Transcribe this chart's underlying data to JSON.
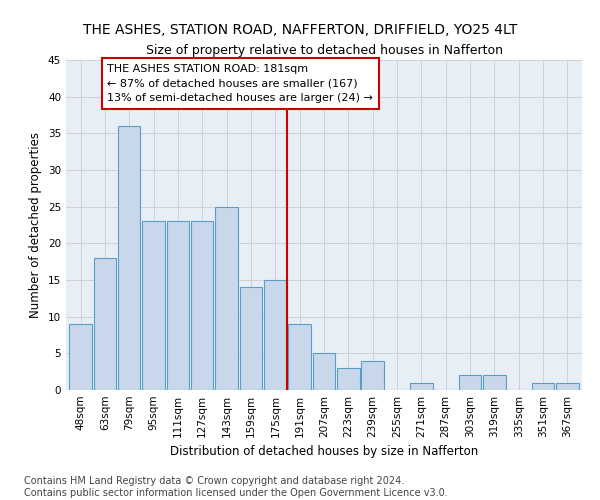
{
  "title": "THE ASHES, STATION ROAD, NAFFERTON, DRIFFIELD, YO25 4LT",
  "subtitle": "Size of property relative to detached houses in Nafferton",
  "xlabel": "Distribution of detached houses by size in Nafferton",
  "ylabel": "Number of detached properties",
  "categories": [
    "48sqm",
    "63sqm",
    "79sqm",
    "95sqm",
    "111sqm",
    "127sqm",
    "143sqm",
    "159sqm",
    "175sqm",
    "191sqm",
    "207sqm",
    "223sqm",
    "239sqm",
    "255sqm",
    "271sqm",
    "287sqm",
    "303sqm",
    "319sqm",
    "335sqm",
    "351sqm",
    "367sqm"
  ],
  "values": [
    9,
    18,
    36,
    23,
    23,
    23,
    25,
    14,
    15,
    9,
    5,
    3,
    4,
    0,
    1,
    0,
    2,
    2,
    0,
    1,
    1
  ],
  "bar_color": "#c8d8ea",
  "bar_edge_color": "#5a9ec8",
  "ylim": [
    0,
    45
  ],
  "yticks": [
    0,
    5,
    10,
    15,
    20,
    25,
    30,
    35,
    40,
    45
  ],
  "grid_color": "#cccccc",
  "background_color": "#e8eef5",
  "footer_line1": "Contains HM Land Registry data © Crown copyright and database right 2024.",
  "footer_line2": "Contains public sector information licensed under the Open Government Licence v3.0.",
  "red_line_color": "#cc0000",
  "annotation_box_color": "#cc0000",
  "annotation_box_text_line1": "THE ASHES STATION ROAD: 181sqm",
  "annotation_box_text_line2": "← 87% of detached houses are smaller (167)",
  "annotation_box_text_line3": "13% of semi-detached houses are larger (24) →",
  "title_fontsize": 10,
  "subtitle_fontsize": 9,
  "axis_label_fontsize": 8.5,
  "tick_fontsize": 7.5,
  "annotation_fontsize": 8,
  "footer_fontsize": 7
}
